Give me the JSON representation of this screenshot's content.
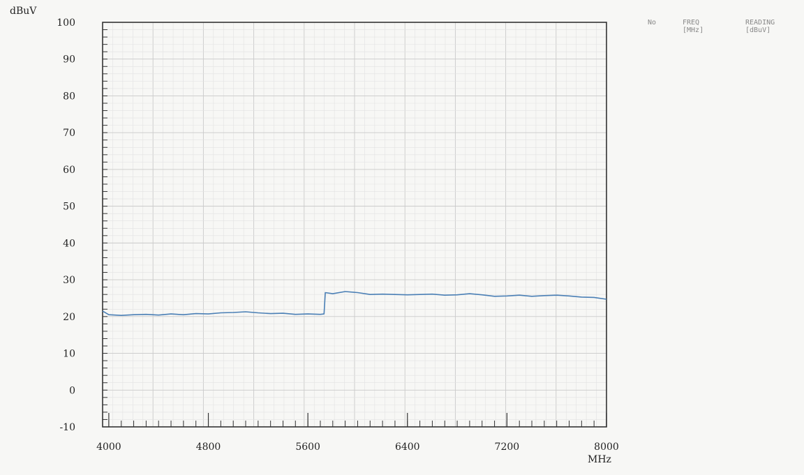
{
  "header": {
    "no": "No",
    "freq": "FREQ",
    "freq_unit": "[MHz]",
    "reading": "READING",
    "reading_unit": "[dBuV]"
  },
  "chart_data": {
    "type": "line",
    "title": "",
    "ylabel": "dBuV",
    "xlabel": "MHz",
    "xlim": [
      3950,
      8000
    ],
    "ylim": [
      -10,
      100
    ],
    "x_ticks": [
      4000,
      4800,
      5600,
      6400,
      7200,
      8000
    ],
    "y_ticks": [
      100,
      90,
      80,
      70,
      60,
      50,
      40,
      30,
      20,
      10,
      0,
      -10
    ],
    "grid": true,
    "line_color": "#4a7fb5",
    "series": [
      {
        "x": [
          3950,
          4000,
          4100,
          4200,
          4300,
          4400,
          4500,
          4600,
          4700,
          4800,
          4900,
          5000,
          5100,
          5200,
          5300,
          5400,
          5500,
          5600,
          5700,
          5730,
          5740,
          5800,
          5900,
          6000,
          6100,
          6200,
          6300,
          6400,
          6500,
          6600,
          6700,
          6800,
          6900,
          7000,
          7100,
          7200,
          7300,
          7400,
          7500,
          7600,
          7700,
          7800,
          7900,
          8000
        ],
        "values": [
          21.5,
          20.5,
          20.3,
          20.5,
          20.6,
          20.4,
          20.7,
          20.5,
          20.8,
          20.7,
          21.0,
          21.1,
          21.3,
          21.0,
          20.8,
          20.9,
          20.6,
          20.7,
          20.6,
          20.7,
          26.5,
          26.2,
          26.8,
          26.5,
          26.0,
          26.1,
          26.0,
          25.9,
          26.0,
          26.1,
          25.8,
          25.9,
          26.2,
          25.9,
          25.5,
          25.6,
          25.8,
          25.5,
          25.7,
          25.8,
          25.6,
          25.3,
          25.2,
          24.7
        ]
      }
    ]
  }
}
